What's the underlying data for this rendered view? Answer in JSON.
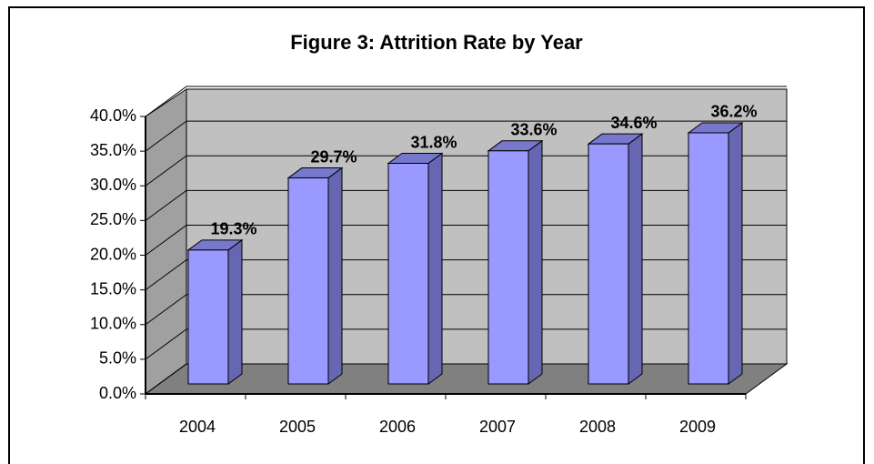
{
  "chart_data": {
    "type": "bar3d",
    "title": "Figure 3: Attrition Rate by Year",
    "categories": [
      "2004",
      "2005",
      "2006",
      "2007",
      "2008",
      "2009"
    ],
    "values": [
      19.3,
      29.7,
      31.8,
      33.6,
      34.6,
      36.2
    ],
    "value_labels": [
      "19.3%",
      "29.7%",
      "31.8%",
      "33.6%",
      "34.6%",
      "36.2%"
    ],
    "color": "#9999ff",
    "ylim": [
      0,
      40
    ],
    "yticks": [
      {
        "value": 0,
        "label": "0.0%"
      },
      {
        "value": 5,
        "label": "5.0%"
      },
      {
        "value": 10,
        "label": "10.0%"
      },
      {
        "value": 15,
        "label": "15.0%"
      },
      {
        "value": 20,
        "label": "20.0%"
      },
      {
        "value": 25,
        "label": "25.0%"
      },
      {
        "value": 30,
        "label": "30.0%"
      },
      {
        "value": 35,
        "label": "35.0%"
      },
      {
        "value": 40,
        "label": "40.0%"
      }
    ],
    "grid": true
  }
}
